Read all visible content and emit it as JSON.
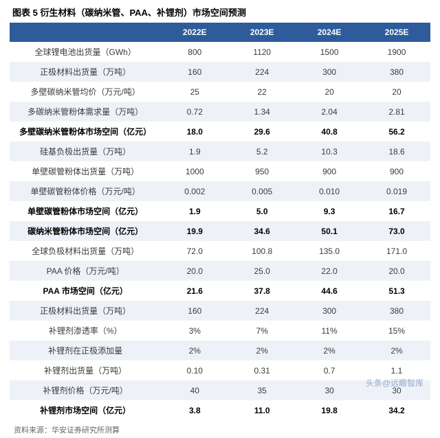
{
  "title": "图表 5 衍生材料（碳纳米管、PAA、补锂剂）市场空间预测",
  "source": "资料来源：华安证券研究所测算",
  "watermark": "头条@远瞻智库",
  "table": {
    "columns": [
      "",
      "2022E",
      "2023E",
      "2024E",
      "2025E"
    ],
    "header_bg": "#2e5b9a",
    "header_fg": "#ffffff",
    "alt_row_bg": "#eef2f8",
    "rows": [
      {
        "label": "全球锂电池出货量（GWh）",
        "values": [
          "800",
          "1120",
          "1500",
          "1900"
        ],
        "bold": false
      },
      {
        "label": "正极材料出货量（万吨）",
        "values": [
          "160",
          "224",
          "300",
          "380"
        ],
        "bold": false
      },
      {
        "label": "多壁碳纳米管均价（万元/吨）",
        "values": [
          "25",
          "22",
          "20",
          "20"
        ],
        "bold": false
      },
      {
        "label": "多碳纳米管粉体需求量（万吨）",
        "values": [
          "0.72",
          "1.34",
          "2.04",
          "2.81"
        ],
        "bold": false
      },
      {
        "label": "多壁碳纳米管粉体市场空间（亿元）",
        "values": [
          "18.0",
          "29.6",
          "40.8",
          "56.2"
        ],
        "bold": true
      },
      {
        "label": "硅基负极出货量（万吨）",
        "values": [
          "1.9",
          "5.2",
          "10.3",
          "18.6"
        ],
        "bold": false
      },
      {
        "label": "单壁碳管粉体出货量（万吨）",
        "values": [
          "1000",
          "950",
          "900",
          "900"
        ],
        "bold": false
      },
      {
        "label": "单壁碳管粉体价格（万元/吨）",
        "values": [
          "0.002",
          "0.005",
          "0.010",
          "0.019"
        ],
        "bold": false
      },
      {
        "label": "单壁碳管粉体市场空间（亿元）",
        "values": [
          "1.9",
          "5.0",
          "9.3",
          "16.7"
        ],
        "bold": true
      },
      {
        "label": "碳纳米管粉体市场空间（亿元）",
        "values": [
          "19.9",
          "34.6",
          "50.1",
          "73.0"
        ],
        "bold": true
      },
      {
        "label": "全球负极材料出货量（万吨）",
        "values": [
          "72.0",
          "100.8",
          "135.0",
          "171.0"
        ],
        "bold": false
      },
      {
        "label": "PAA 价格（万元/吨）",
        "values": [
          "20.0",
          "25.0",
          "22.0",
          "20.0"
        ],
        "bold": false
      },
      {
        "label": "PAA 市场空间（亿元）",
        "values": [
          "21.6",
          "37.8",
          "44.6",
          "51.3"
        ],
        "bold": true
      },
      {
        "label": "正极材料出货量（万吨）",
        "values": [
          "160",
          "224",
          "300",
          "380"
        ],
        "bold": false
      },
      {
        "label": "补锂剂渗透率（%）",
        "values": [
          "3%",
          "7%",
          "11%",
          "15%"
        ],
        "bold": false
      },
      {
        "label": "补锂剂在正极添加量",
        "values": [
          "2%",
          "2%",
          "2%",
          "2%"
        ],
        "bold": false
      },
      {
        "label": "补锂剂出货量（万吨）",
        "values": [
          "0.10",
          "0.31",
          "0.7",
          "1.1"
        ],
        "bold": false
      },
      {
        "label": "补锂剂价格（万元/吨）",
        "values": [
          "40",
          "35",
          "30",
          "30"
        ],
        "bold": false
      },
      {
        "label": "补锂剂市场空间（亿元）",
        "values": [
          "3.8",
          "11.0",
          "19.8",
          "34.2"
        ],
        "bold": true
      }
    ]
  }
}
